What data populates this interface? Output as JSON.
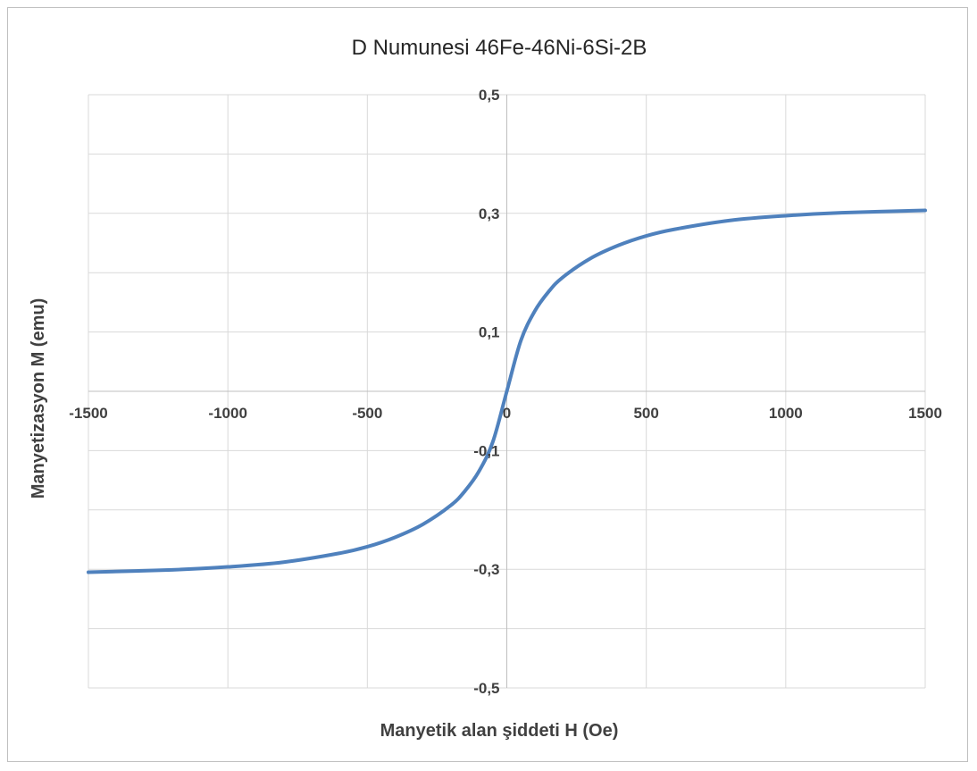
{
  "chart_data": {
    "type": "line",
    "title": "D Numunesi 46Fe-46Ni-6Si-2B",
    "xlabel": "Manyetik alan şiddeti H (Oe)",
    "ylabel": "Manyetizasyon M  (emu)",
    "xlim": [
      -1500,
      1500
    ],
    "ylim": [
      -0.5,
      0.5
    ],
    "x_ticks": [
      -1500,
      -1000,
      -500,
      0,
      500,
      1000,
      1500
    ],
    "x_tick_labels": [
      "-1500",
      "-1000",
      "-500",
      "0",
      "500",
      "1000",
      "1500"
    ],
    "y_ticks": [
      -0.5,
      -0.3,
      -0.1,
      0.1,
      0.3,
      0.5
    ],
    "y_tick_labels": [
      "-0,5",
      "-0,3",
      "-0,1",
      "0,1",
      "0,3",
      "0,5"
    ],
    "y_minor_gridlines": [
      -0.4,
      -0.2,
      0.0,
      0.2,
      0.4
    ],
    "grid": true,
    "legend": "none",
    "series": [
      {
        "color": "#4f81bd",
        "x": [
          -1500,
          -1200,
          -1000,
          -800,
          -600,
          -500,
          -400,
          -300,
          -200,
          -150,
          -100,
          -50,
          0,
          50,
          100,
          150,
          200,
          300,
          400,
          500,
          600,
          800,
          1000,
          1200,
          1500
        ],
        "y": [
          -0.305,
          -0.301,
          -0.296,
          -0.288,
          -0.273,
          -0.262,
          -0.246,
          -0.224,
          -0.192,
          -0.168,
          -0.135,
          -0.085,
          0.0,
          0.085,
          0.135,
          0.168,
          0.192,
          0.224,
          0.246,
          0.262,
          0.273,
          0.288,
          0.296,
          0.301,
          0.305
        ]
      }
    ]
  }
}
